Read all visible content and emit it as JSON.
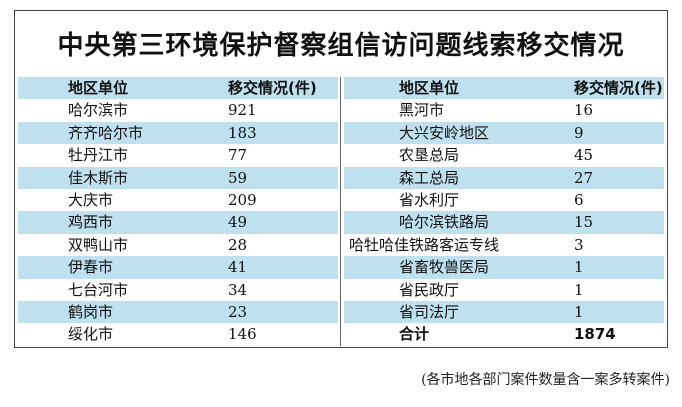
{
  "title": "中央第三环境保护督察组信访问题线索移交情况",
  "header": {
    "region": "地区单位",
    "count": "移交情况(件)"
  },
  "left_rows": [
    {
      "name": "哈尔滨市",
      "value": "921"
    },
    {
      "name": "齐齐哈尔市",
      "value": "183"
    },
    {
      "name": "牡丹江市",
      "value": "77"
    },
    {
      "name": "佳木斯市",
      "value": "59"
    },
    {
      "name": "大庆市",
      "value": "209"
    },
    {
      "name": "鸡西市",
      "value": "49"
    },
    {
      "name": "双鸭山市",
      "value": "28"
    },
    {
      "name": "伊春市",
      "value": "41"
    },
    {
      "name": "七台河市",
      "value": "34"
    },
    {
      "name": "鹤岗市",
      "value": "23"
    },
    {
      "name": "绥化市",
      "value": "146"
    }
  ],
  "right_rows": [
    {
      "name": "黑河市",
      "value": "16"
    },
    {
      "name": "大兴安岭地区",
      "value": "9"
    },
    {
      "name": "农垦总局",
      "value": "45"
    },
    {
      "name": "森工总局",
      "value": "27"
    },
    {
      "name": "省水利厅",
      "value": "6"
    },
    {
      "name": "哈尔滨铁路局",
      "value": "15"
    },
    {
      "name": "哈牡哈佳铁路客运专线",
      "value": "3"
    },
    {
      "name": "省畜牧兽医局",
      "value": "1"
    },
    {
      "name": "省民政厅",
      "value": "1"
    },
    {
      "name": "省司法厅",
      "value": "1"
    }
  ],
  "total": {
    "label": "合计",
    "value": "1874"
  },
  "note": "(各市地各部门案件数量含一案多转案件)",
  "colors": {
    "stripe": "#bfe0ef",
    "border": "#444444"
  }
}
